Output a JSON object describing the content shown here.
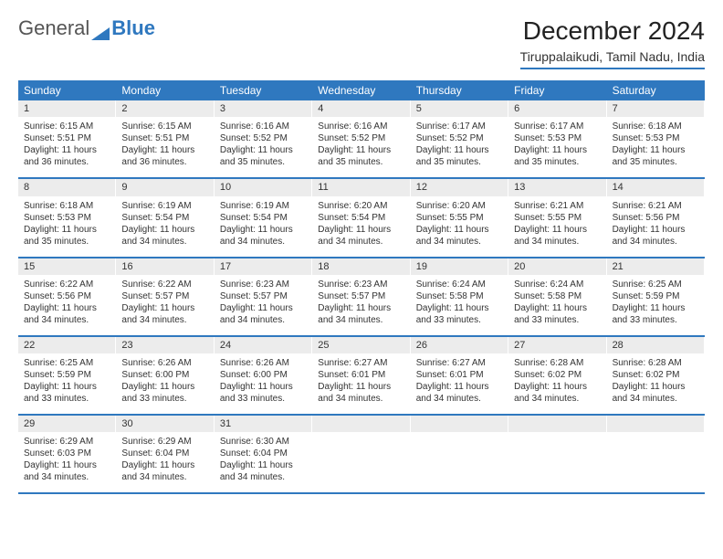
{
  "brand": {
    "part1": "General",
    "part2": "Blue"
  },
  "title": "December 2024",
  "location": "Tiruppalaikudi, Tamil Nadu, India",
  "colors": {
    "accent": "#2f78bf",
    "row_bg": "#ececec",
    "text": "#333333",
    "background": "#ffffff"
  },
  "day_headers": [
    "Sunday",
    "Monday",
    "Tuesday",
    "Wednesday",
    "Thursday",
    "Friday",
    "Saturday"
  ],
  "days": [
    {
      "n": "1",
      "sr": "6:15 AM",
      "ss": "5:51 PM",
      "dl": "11 hours and 36 minutes."
    },
    {
      "n": "2",
      "sr": "6:15 AM",
      "ss": "5:51 PM",
      "dl": "11 hours and 36 minutes."
    },
    {
      "n": "3",
      "sr": "6:16 AM",
      "ss": "5:52 PM",
      "dl": "11 hours and 35 minutes."
    },
    {
      "n": "4",
      "sr": "6:16 AM",
      "ss": "5:52 PM",
      "dl": "11 hours and 35 minutes."
    },
    {
      "n": "5",
      "sr": "6:17 AM",
      "ss": "5:52 PM",
      "dl": "11 hours and 35 minutes."
    },
    {
      "n": "6",
      "sr": "6:17 AM",
      "ss": "5:53 PM",
      "dl": "11 hours and 35 minutes."
    },
    {
      "n": "7",
      "sr": "6:18 AM",
      "ss": "5:53 PM",
      "dl": "11 hours and 35 minutes."
    },
    {
      "n": "8",
      "sr": "6:18 AM",
      "ss": "5:53 PM",
      "dl": "11 hours and 35 minutes."
    },
    {
      "n": "9",
      "sr": "6:19 AM",
      "ss": "5:54 PM",
      "dl": "11 hours and 34 minutes."
    },
    {
      "n": "10",
      "sr": "6:19 AM",
      "ss": "5:54 PM",
      "dl": "11 hours and 34 minutes."
    },
    {
      "n": "11",
      "sr": "6:20 AM",
      "ss": "5:54 PM",
      "dl": "11 hours and 34 minutes."
    },
    {
      "n": "12",
      "sr": "6:20 AM",
      "ss": "5:55 PM",
      "dl": "11 hours and 34 minutes."
    },
    {
      "n": "13",
      "sr": "6:21 AM",
      "ss": "5:55 PM",
      "dl": "11 hours and 34 minutes."
    },
    {
      "n": "14",
      "sr": "6:21 AM",
      "ss": "5:56 PM",
      "dl": "11 hours and 34 minutes."
    },
    {
      "n": "15",
      "sr": "6:22 AM",
      "ss": "5:56 PM",
      "dl": "11 hours and 34 minutes."
    },
    {
      "n": "16",
      "sr": "6:22 AM",
      "ss": "5:57 PM",
      "dl": "11 hours and 34 minutes."
    },
    {
      "n": "17",
      "sr": "6:23 AM",
      "ss": "5:57 PM",
      "dl": "11 hours and 34 minutes."
    },
    {
      "n": "18",
      "sr": "6:23 AM",
      "ss": "5:57 PM",
      "dl": "11 hours and 34 minutes."
    },
    {
      "n": "19",
      "sr": "6:24 AM",
      "ss": "5:58 PM",
      "dl": "11 hours and 33 minutes."
    },
    {
      "n": "20",
      "sr": "6:24 AM",
      "ss": "5:58 PM",
      "dl": "11 hours and 33 minutes."
    },
    {
      "n": "21",
      "sr": "6:25 AM",
      "ss": "5:59 PM",
      "dl": "11 hours and 33 minutes."
    },
    {
      "n": "22",
      "sr": "6:25 AM",
      "ss": "5:59 PM",
      "dl": "11 hours and 33 minutes."
    },
    {
      "n": "23",
      "sr": "6:26 AM",
      "ss": "6:00 PM",
      "dl": "11 hours and 33 minutes."
    },
    {
      "n": "24",
      "sr": "6:26 AM",
      "ss": "6:00 PM",
      "dl": "11 hours and 33 minutes."
    },
    {
      "n": "25",
      "sr": "6:27 AM",
      "ss": "6:01 PM",
      "dl": "11 hours and 34 minutes."
    },
    {
      "n": "26",
      "sr": "6:27 AM",
      "ss": "6:01 PM",
      "dl": "11 hours and 34 minutes."
    },
    {
      "n": "27",
      "sr": "6:28 AM",
      "ss": "6:02 PM",
      "dl": "11 hours and 34 minutes."
    },
    {
      "n": "28",
      "sr": "6:28 AM",
      "ss": "6:02 PM",
      "dl": "11 hours and 34 minutes."
    },
    {
      "n": "29",
      "sr": "6:29 AM",
      "ss": "6:03 PM",
      "dl": "11 hours and 34 minutes."
    },
    {
      "n": "30",
      "sr": "6:29 AM",
      "ss": "6:04 PM",
      "dl": "11 hours and 34 minutes."
    },
    {
      "n": "31",
      "sr": "6:30 AM",
      "ss": "6:04 PM",
      "dl": "11 hours and 34 minutes."
    }
  ],
  "labels": {
    "sunrise": "Sunrise: ",
    "sunset": "Sunset: ",
    "daylight": "Daylight: "
  }
}
